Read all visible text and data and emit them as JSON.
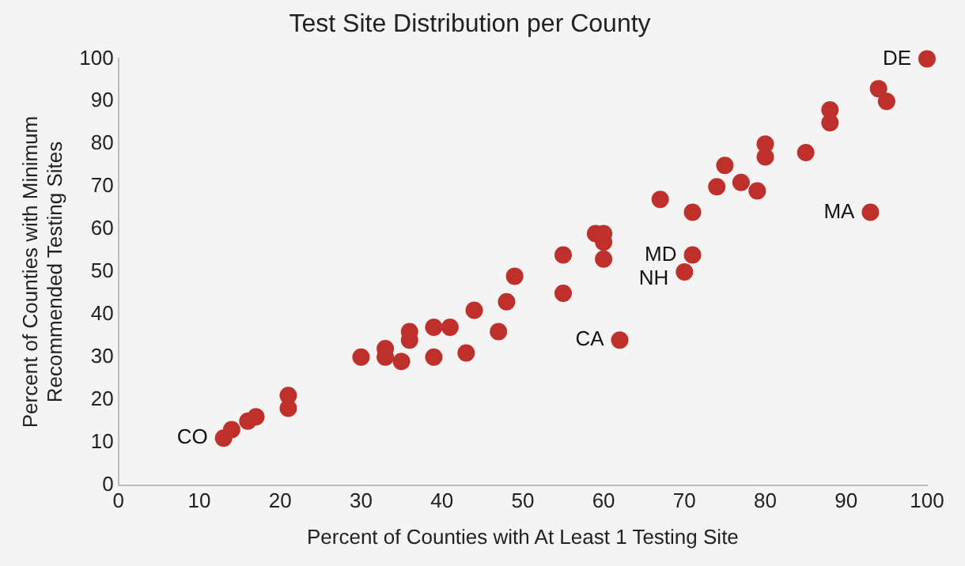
{
  "chart_data": {
    "type": "scatter",
    "title": "Test Site Distribution per County",
    "xlabel": "Percent of Counties with At Least 1 Testing Site",
    "ylabel": "Percent of Counties with Minimum Recommended Testing Sites",
    "x": [
      13,
      14,
      16,
      17,
      21,
      21,
      30,
      33,
      33,
      35,
      36,
      36,
      39,
      39,
      41,
      43,
      44,
      47,
      48,
      49,
      55,
      55,
      59,
      60,
      60,
      60,
      62,
      67,
      70,
      71,
      71,
      74,
      75,
      77,
      79,
      80,
      80,
      85,
      88,
      88,
      93,
      94,
      95,
      100
    ],
    "series": [
      {
        "color": "#c0302a",
        "values": [
          11,
          13,
          15,
          16,
          18,
          21,
          30,
          32,
          30,
          29,
          36,
          34,
          37,
          30,
          37,
          31,
          41,
          36,
          43,
          49,
          54,
          45,
          59,
          59,
          57,
          53,
          34,
          67,
          50,
          54,
          64,
          70,
          75,
          71,
          69,
          80,
          77,
          78,
          88,
          85,
          64,
          93,
          90,
          100
        ]
      }
    ],
    "xlim": [
      0,
      100
    ],
    "xticks": [
      0,
      10,
      20,
      30,
      40,
      50,
      60,
      70,
      80,
      90,
      100
    ],
    "ylim": [
      0,
      100
    ],
    "yticks": [
      0,
      10,
      20,
      30,
      40,
      50,
      60,
      70,
      80,
      90,
      100
    ],
    "grid": false,
    "legend": false,
    "marker": "circle",
    "annotations": [
      {
        "text": "CO",
        "x": 13,
        "y": 11
      },
      {
        "text": "CA",
        "x": 62,
        "y": 34
      },
      {
        "text": "MD",
        "x": 71,
        "y": 54
      },
      {
        "text": "NH",
        "x": 70,
        "y": 50
      },
      {
        "text": "MA",
        "x": 93,
        "y": 64
      },
      {
        "text": "DE",
        "x": 100,
        "y": 100
      }
    ]
  }
}
